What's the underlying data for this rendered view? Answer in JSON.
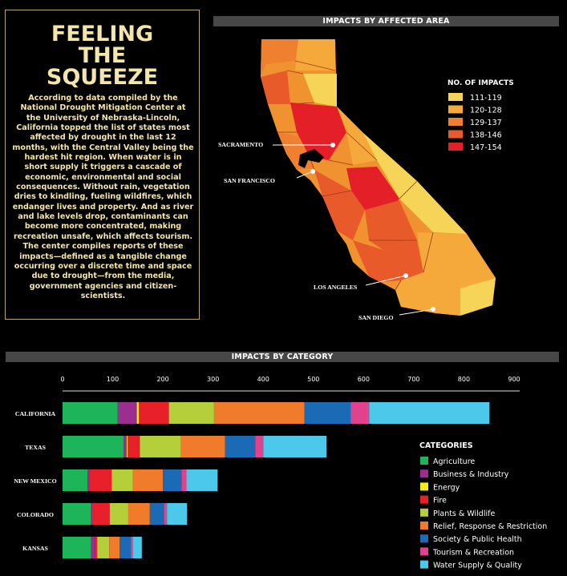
{
  "intro": {
    "title_lines": [
      "FEELING",
      "THE",
      "SQUEEZE"
    ],
    "body": "According to data compiled by the National Drought Mitigation Center at the University of Nebraska-Lincoln, California topped the list of states most affected by drought in the last 12 months, with the Central Valley being the hardest hit region. When water is in short supply it triggers a cascade of economic, environmental and social consequences. Without rain, vegetation dries to kindling, fueling wildfires, which endanger lives and property. And as river and lake levels drop, contaminants can become more concentrated, making recreation unsafe, which affects tourism. The center compiles reports of these impacts—defined as a tangible change occurring over a discrete time and space due to drought—from the media, government agencies and citizen-scientists."
  },
  "map": {
    "band_title": "IMPACTS BY AFFECTED AREA",
    "legend_title": "NO. OF IMPACTS",
    "legend": [
      {
        "label": "111-119",
        "color": "#f6d458"
      },
      {
        "label": "120-128",
        "color": "#f5a93a"
      },
      {
        "label": "129-137",
        "color": "#ef8030"
      },
      {
        "label": "138-146",
        "color": "#e95a2b"
      },
      {
        "label": "147-154",
        "color": "#e41f28"
      }
    ],
    "cities": [
      "SACRAMENTO",
      "SAN FRANCISCO",
      "LOS ANGELES",
      "SAN DIEGO"
    ]
  },
  "chart_data": {
    "type": "bar",
    "orientation": "horizontal",
    "stacked": true,
    "title": "IMPACTS BY CATEGORY",
    "xlim": [
      0,
      900
    ],
    "xticks": [
      0,
      100,
      200,
      300,
      400,
      500,
      600,
      700,
      800,
      900
    ],
    "legend_title": "CATEGORIES",
    "legend_position": "right",
    "categories": [
      "CALIFORNIA",
      "TEXAS",
      "NEW MEXICO",
      "COLORADO",
      "KANSAS"
    ],
    "series": [
      {
        "name": "Agriculture",
        "color": "#1eb45a",
        "values": [
          110,
          122,
          50,
          57,
          57
        ]
      },
      {
        "name": "Business & Industry",
        "color": "#9b2e8e",
        "values": [
          38,
          6,
          3,
          2,
          8
        ]
      },
      {
        "name": "Energy",
        "color": "#f7ec13",
        "values": [
          4,
          2,
          0,
          0,
          0
        ]
      },
      {
        "name": "Fire",
        "color": "#e8202a",
        "values": [
          60,
          24,
          45,
          35,
          4
        ]
      },
      {
        "name": "Plants & Wildlife",
        "color": "#b5cf3a",
        "values": [
          90,
          82,
          42,
          37,
          24
        ]
      },
      {
        "name": "Relief, Response & Restriction",
        "color": "#f07b2b",
        "values": [
          180,
          88,
          60,
          43,
          21
        ]
      },
      {
        "name": "Society & Public Health",
        "color": "#1b6ab5",
        "values": [
          92,
          60,
          37,
          28,
          22
        ]
      },
      {
        "name": "Tourism & Recreation",
        "color": "#e2418e",
        "values": [
          37,
          16,
          10,
          6,
          4
        ]
      },
      {
        "name": "Water Supply & Quality",
        "color": "#4cc8ea",
        "values": [
          240,
          126,
          62,
          40,
          18
        ]
      }
    ]
  }
}
